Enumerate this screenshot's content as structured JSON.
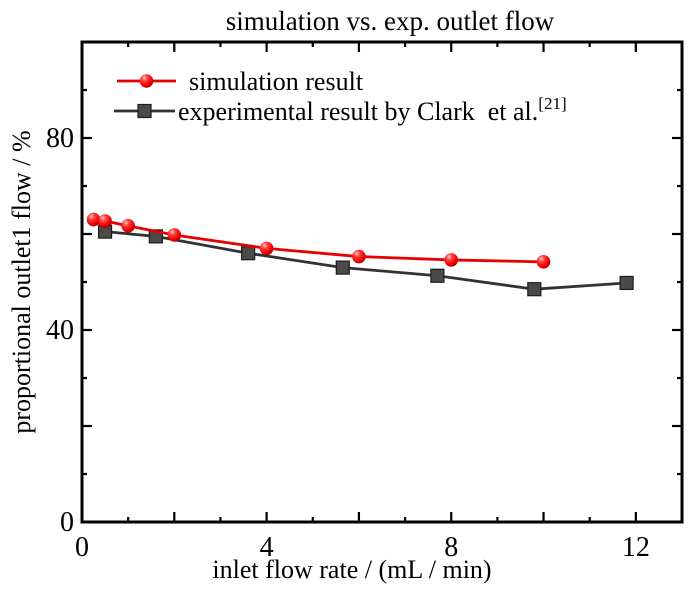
{
  "figure": {
    "background": "#ffffff",
    "frame_color": "#000000",
    "text_color": "#000000"
  },
  "chart_data": {
    "type": "line",
    "title": "simulation vs. exp. outlet flow",
    "xlabel": "inlet flow rate / (mL / min)",
    "ylabel": "proportional outlet1 flow / %",
    "xlim": [
      0,
      13
    ],
    "ylim": [
      0,
      100
    ],
    "grid": false,
    "legend_position": "top-left-inside",
    "x_ticks": {
      "label_values": [
        0,
        4,
        8,
        12
      ],
      "major_every": 2,
      "minor_every": 1
    },
    "y_ticks": {
      "label_values": [
        0,
        40,
        80
      ],
      "major_every": 20,
      "minor_every": 10
    },
    "series": [
      {
        "key": "experimental",
        "name": "experimental result by Clark  et al.",
        "name_superscript": "[21]",
        "color": "#333333",
        "marker": "square",
        "marker_fill": "#4a4a4a",
        "x": [
          0.5,
          1.6,
          3.6,
          5.65,
          7.7,
          9.8,
          11.8
        ],
        "y": [
          60.5,
          59.5,
          56.0,
          53.0,
          51.3,
          48.5,
          49.8
        ]
      },
      {
        "key": "simulation",
        "name": "simulation result",
        "name_superscript": "",
        "color": "#e60000",
        "marker": "circle",
        "marker_fill": "ball-gradient",
        "x": [
          0.25,
          0.5,
          1,
          2,
          4,
          6,
          8,
          10
        ],
        "y": [
          63.0,
          62.7,
          61.7,
          59.8,
          57.0,
          55.3,
          54.6,
          54.2
        ]
      }
    ],
    "legend": {
      "entries": [
        "simulation",
        "experimental"
      ]
    }
  }
}
